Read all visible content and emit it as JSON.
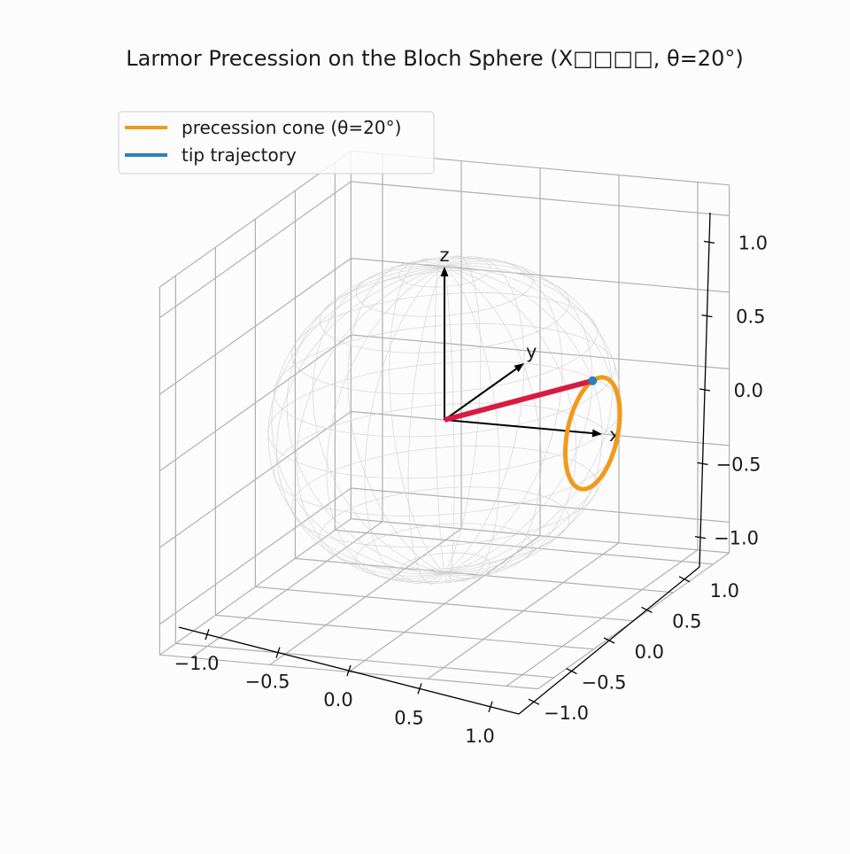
{
  "chart_data": {
    "type": "3d-line",
    "title": "Larmor Precession on the Bloch Sphere (X□□□□, θ=20°)",
    "axes_labels": [
      "x",
      "y",
      "z"
    ],
    "xlim": [
      -1.2,
      1.2
    ],
    "ylim": [
      -1.2,
      1.2
    ],
    "zlim": [
      -1.2,
      1.2
    ],
    "ticks": [
      -1.0,
      -0.5,
      0.0,
      0.5,
      1.0
    ],
    "tick_labels": [
      "−1.0",
      "−0.5",
      "0.0",
      "0.5",
      "1.0"
    ],
    "grid": true,
    "legend_position": "upper-left",
    "sphere": {
      "radius": 1.0,
      "style": "wireframe",
      "color": "#cccccc"
    },
    "basis_arrows": [
      {
        "name": "x",
        "vector": [
          1.0,
          0.0,
          0.0
        ]
      },
      {
        "name": "y",
        "vector": [
          0.0,
          1.0,
          0.0
        ]
      },
      {
        "name": "z",
        "vector": [
          0.0,
          0.0,
          1.0
        ]
      }
    ],
    "precession_axis": "x",
    "cone_angle_deg": 20,
    "series": [
      {
        "name": "precession cone (θ=20°)",
        "kind": "circle",
        "color": "#f09a1c"
      },
      {
        "name": "tip trajectory",
        "kind": "point",
        "color": "#2e7fba"
      }
    ],
    "bloch_vector": {
      "color": "#d81b40",
      "tip": [
        0.9397,
        0.0,
        0.342
      ]
    }
  }
}
